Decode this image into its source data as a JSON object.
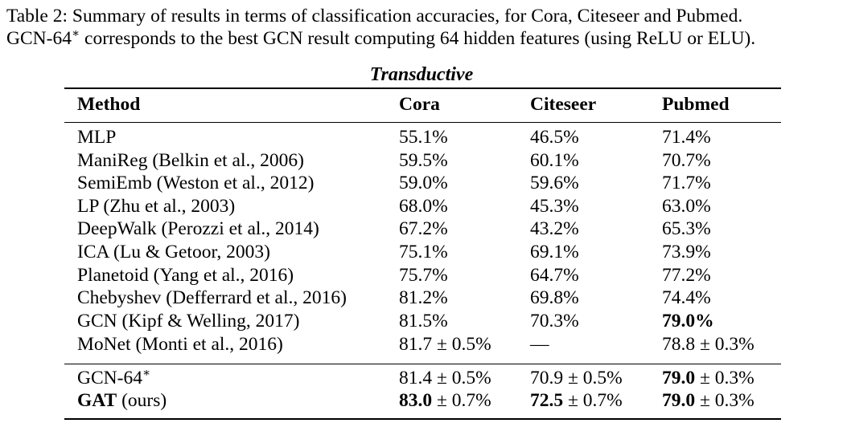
{
  "caption": {
    "line1": "Table 2: Summary of results in terms of classification accuracies, for Cora, Citeseer and Pubmed.",
    "line2_prefix": "GCN-64",
    "line2_sup": "∗",
    "line2_suffix": " corresponds to the best GCN result computing 64 hidden features (using ReLU or ELU)."
  },
  "table": {
    "title": "Transductive",
    "headers": {
      "method": "Method",
      "cora": "Cora",
      "citeseer": "Citeseer",
      "pubmed": "Pubmed"
    },
    "rows": [
      {
        "method": "MLP",
        "cora": "55.1%",
        "citeseer": "46.5%",
        "pubmed": "71.4%"
      },
      {
        "method": "ManiReg (Belkin et al., 2006)",
        "cora": "59.5%",
        "citeseer": "60.1%",
        "pubmed": "70.7%"
      },
      {
        "method": "SemiEmb (Weston et al., 2012)",
        "cora": "59.0%",
        "citeseer": "59.6%",
        "pubmed": "71.7%"
      },
      {
        "method": "LP (Zhu et al., 2003)",
        "cora": "68.0%",
        "citeseer": "45.3%",
        "pubmed": "63.0%"
      },
      {
        "method": "DeepWalk (Perozzi et al., 2014)",
        "cora": "67.2%",
        "citeseer": "43.2%",
        "pubmed": "65.3%"
      },
      {
        "method": "ICA (Lu & Getoor, 2003)",
        "cora": "75.1%",
        "citeseer": "69.1%",
        "pubmed": "73.9%"
      },
      {
        "method": "Planetoid (Yang et al., 2016)",
        "cora": "75.7%",
        "citeseer": "64.7%",
        "pubmed": "77.2%"
      },
      {
        "method": "Chebyshev (Defferrard et al., 2016)",
        "cora": "81.2%",
        "citeseer": "69.8%",
        "pubmed": "74.4%"
      },
      {
        "method": "GCN (Kipf & Welling, 2017)",
        "cora": "81.5%",
        "citeseer": "70.3%",
        "pubmed": "79.0%"
      },
      {
        "method": "MoNet (Monti et al., 2016)",
        "cora": "81.7 ± 0.5%",
        "citeseer": "—",
        "pubmed": "78.8 ± 0.3%"
      }
    ],
    "gcn64": {
      "method": "GCN-64",
      "method_sup": "∗",
      "cora": "81.4 ± 0.5%",
      "citeseer": "70.9 ± 0.5%",
      "pubmed_bold": "79.0",
      "pubmed_rest": " ± 0.3%"
    },
    "gat": {
      "method_bold": "GAT",
      "method_rest": " (ours)",
      "cora_bold": "83.0",
      "cora_rest": " ± 0.7%",
      "citeseer_bold": "72.5",
      "citeseer_rest": " ± 0.7%",
      "pubmed_bold": "79.0",
      "pubmed_rest": " ± 0.3%"
    }
  }
}
